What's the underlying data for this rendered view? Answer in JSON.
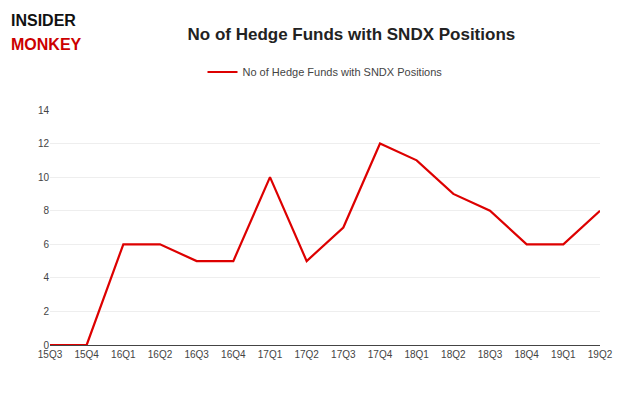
{
  "chart_data": {
    "type": "line",
    "title": "No of Hedge Funds with SNDX Positions",
    "categories": [
      "15Q3",
      "15Q4",
      "16Q1",
      "16Q2",
      "16Q3",
      "16Q4",
      "17Q1",
      "17Q2",
      "17Q3",
      "17Q4",
      "18Q1",
      "18Q2",
      "18Q3",
      "18Q4",
      "19Q1",
      "19Q2"
    ],
    "series": [
      {
        "name": "No of Hedge Funds with SNDX Positions",
        "color": "#dd0000",
        "values": [
          0,
          0,
          6,
          6,
          5,
          5,
          10,
          5,
          7,
          12,
          11,
          9,
          8,
          6,
          6,
          8
        ]
      }
    ],
    "ylim": [
      0,
      14
    ],
    "yticks": [
      0,
      2,
      4,
      6,
      8,
      10,
      12,
      14
    ],
    "grid": true,
    "legend": "top",
    "annotations": [
      {
        "text": "INSIDER",
        "color": "#111111"
      },
      {
        "text": "MONKEY",
        "color": "#cc0000"
      }
    ]
  }
}
